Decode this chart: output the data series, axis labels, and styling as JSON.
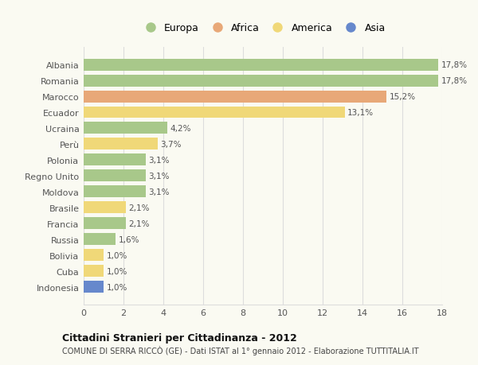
{
  "categories": [
    "Albania",
    "Romania",
    "Marocco",
    "Ecuador",
    "Ucraina",
    "Perù",
    "Polonia",
    "Regno Unito",
    "Moldova",
    "Brasile",
    "Francia",
    "Russia",
    "Bolivia",
    "Cuba",
    "Indonesia"
  ],
  "values": [
    17.8,
    17.8,
    15.2,
    13.1,
    4.2,
    3.7,
    3.1,
    3.1,
    3.1,
    2.1,
    2.1,
    1.6,
    1.0,
    1.0,
    1.0
  ],
  "labels": [
    "17,8%",
    "17,8%",
    "15,2%",
    "13,1%",
    "4,2%",
    "3,7%",
    "3,1%",
    "3,1%",
    "3,1%",
    "2,1%",
    "2,1%",
    "1,6%",
    "1,0%",
    "1,0%",
    "1,0%"
  ],
  "continent": [
    "Europa",
    "Europa",
    "Africa",
    "America",
    "Europa",
    "America",
    "Europa",
    "Europa",
    "Europa",
    "America",
    "Europa",
    "Europa",
    "America",
    "America",
    "Asia"
  ],
  "colors": {
    "Europa": "#a8c88a",
    "Africa": "#e8a878",
    "America": "#f0d878",
    "Asia": "#6688cc"
  },
  "xlim": [
    0,
    18
  ],
  "xticks": [
    0,
    2,
    4,
    6,
    8,
    10,
    12,
    14,
    16,
    18
  ],
  "title": "Cittadini Stranieri per Cittadinanza - 2012",
  "subtitle": "COMUNE DI SERRA RICCÒ (GE) - Dati ISTAT al 1° gennaio 2012 - Elaborazione TUTTITALIA.IT",
  "background_color": "#fafaf2",
  "bar_height": 0.75,
  "grid_color": "#dddddd",
  "legend_labels": [
    "Europa",
    "Africa",
    "America",
    "Asia"
  ]
}
